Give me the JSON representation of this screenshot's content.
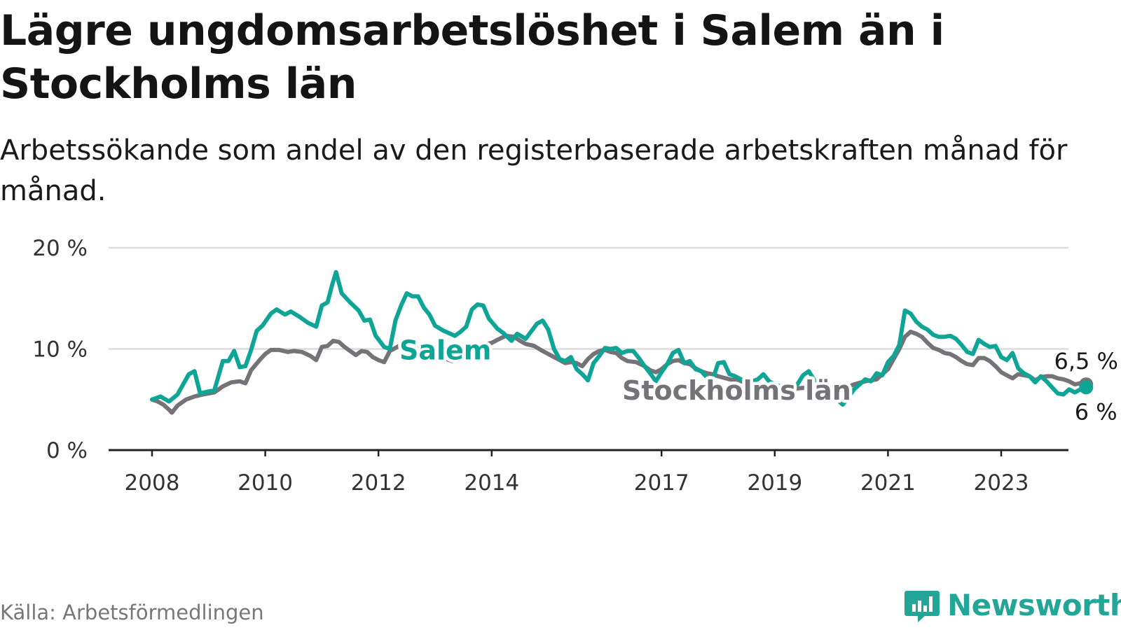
{
  "title": "Lägre ungdomsarbetslöshet i Salem än i Stockholms län",
  "subtitle": "Arbetssökande som andel av den registerbaserade arbetskraften månad för månad.",
  "source": "Källa: Arbetsförmedlingen",
  "brand": {
    "name": "Newsworthy",
    "icon": "bar-chart-icon",
    "color": "#23a598"
  },
  "colors": {
    "salem": "#0ea596",
    "stockholm": "#767378",
    "grid": "#dcdcdc",
    "axis": "#222222"
  },
  "chart_data": {
    "type": "line",
    "ylim": [
      0,
      20
    ],
    "yticks": [
      0,
      10,
      20
    ],
    "ytick_labels": [
      "0 %",
      "10 %",
      "20 %"
    ],
    "xlim": [
      2008,
      2024.2
    ],
    "xticks": [
      2008,
      2010,
      2012,
      2014,
      2017,
      2019,
      2021,
      2023
    ],
    "xtick_labels": [
      "2008",
      "2010",
      "2012",
      "2014",
      "2017",
      "2019",
      "2021",
      "2023"
    ],
    "series": [
      {
        "name": "Salem",
        "label": "Salem",
        "end_label": "6 %",
        "color": "#0ea596",
        "points": [
          [
            2008.0,
            5.0
          ],
          [
            2008.15,
            5.3
          ],
          [
            2008.3,
            4.8
          ],
          [
            2008.45,
            5.5
          ],
          [
            2008.55,
            6.5
          ],
          [
            2008.65,
            7.5
          ],
          [
            2008.75,
            7.8
          ],
          [
            2008.85,
            5.6
          ],
          [
            2009.0,
            5.8
          ],
          [
            2009.1,
            5.9
          ],
          [
            2009.25,
            8.8
          ],
          [
            2009.35,
            8.8
          ],
          [
            2009.45,
            9.8
          ],
          [
            2009.55,
            8.2
          ],
          [
            2009.65,
            8.3
          ],
          [
            2009.75,
            9.9
          ],
          [
            2009.85,
            11.8
          ],
          [
            2009.95,
            12.3
          ],
          [
            2010.1,
            13.5
          ],
          [
            2010.2,
            13.9
          ],
          [
            2010.35,
            13.4
          ],
          [
            2010.45,
            13.7
          ],
          [
            2010.6,
            13.2
          ],
          [
            2010.75,
            12.6
          ],
          [
            2010.9,
            12.2
          ],
          [
            2011.0,
            14.3
          ],
          [
            2011.1,
            14.6
          ],
          [
            2011.18,
            16.3
          ],
          [
            2011.25,
            17.6
          ],
          [
            2011.35,
            15.5
          ],
          [
            2011.5,
            14.6
          ],
          [
            2011.65,
            13.8
          ],
          [
            2011.75,
            12.8
          ],
          [
            2011.85,
            12.9
          ],
          [
            2011.95,
            11.3
          ],
          [
            2012.1,
            10.2
          ],
          [
            2012.2,
            10.0
          ],
          [
            2012.3,
            12.8
          ],
          [
            2012.4,
            14.3
          ],
          [
            2012.5,
            15.5
          ],
          [
            2012.6,
            15.2
          ],
          [
            2012.7,
            15.2
          ],
          [
            2012.8,
            14.1
          ],
          [
            2012.9,
            13.4
          ],
          [
            2013.0,
            12.3
          ],
          [
            2013.15,
            11.8
          ],
          [
            2013.35,
            11.3
          ],
          [
            2013.45,
            11.7
          ],
          [
            2013.55,
            12.2
          ],
          [
            2013.65,
            13.9
          ],
          [
            2013.75,
            14.4
          ],
          [
            2013.85,
            14.3
          ],
          [
            2013.95,
            13.0
          ],
          [
            2014.1,
            12.0
          ],
          [
            2014.2,
            11.6
          ],
          [
            2014.35,
            10.8
          ],
          [
            2014.45,
            11.5
          ],
          [
            2014.6,
            11.0
          ],
          [
            2014.8,
            12.5
          ],
          [
            2014.9,
            12.8
          ],
          [
            2015.0,
            11.9
          ],
          [
            2015.1,
            10.0
          ],
          [
            2015.2,
            9.0
          ],
          [
            2015.3,
            8.8
          ],
          [
            2015.4,
            9.2
          ],
          [
            2015.5,
            8.0
          ],
          [
            2015.6,
            7.5
          ],
          [
            2015.7,
            6.9
          ],
          [
            2015.8,
            8.6
          ],
          [
            2015.9,
            9.3
          ],
          [
            2016.0,
            10.1
          ],
          [
            2016.1,
            10.0
          ],
          [
            2016.2,
            10.1
          ],
          [
            2016.3,
            9.6
          ],
          [
            2016.4,
            9.8
          ],
          [
            2016.5,
            9.8
          ],
          [
            2016.6,
            9.1
          ],
          [
            2016.7,
            8.3
          ],
          [
            2016.8,
            7.6
          ],
          [
            2016.9,
            6.8
          ],
          [
            2017.0,
            7.7
          ],
          [
            2017.1,
            8.5
          ],
          [
            2017.2,
            9.6
          ],
          [
            2017.3,
            9.9
          ],
          [
            2017.4,
            8.6
          ],
          [
            2017.5,
            8.8
          ],
          [
            2017.6,
            8.0
          ],
          [
            2017.7,
            7.8
          ],
          [
            2017.8,
            7.2
          ],
          [
            2017.9,
            6.9
          ],
          [
            2018.0,
            8.6
          ],
          [
            2018.1,
            8.7
          ],
          [
            2018.2,
            7.5
          ],
          [
            2018.3,
            7.3
          ],
          [
            2018.4,
            7.0
          ],
          [
            2018.5,
            6.9
          ],
          [
            2018.6,
            6.8
          ],
          [
            2018.7,
            7.0
          ],
          [
            2018.8,
            7.5
          ],
          [
            2018.9,
            6.8
          ],
          [
            2019.0,
            6.5
          ],
          [
            2019.1,
            6.3
          ],
          [
            2019.2,
            6.0
          ],
          [
            2019.3,
            6.2
          ],
          [
            2019.4,
            6.5
          ],
          [
            2019.5,
            7.4
          ],
          [
            2019.6,
            7.8
          ],
          [
            2019.7,
            6.9
          ],
          [
            2019.8,
            6.0
          ],
          [
            2019.9,
            5.5
          ],
          [
            2020.0,
            5.4
          ],
          [
            2020.1,
            5.0
          ],
          [
            2020.2,
            4.5
          ],
          [
            2020.3,
            5.2
          ],
          [
            2020.4,
            6.0
          ],
          [
            2020.5,
            6.5
          ],
          [
            2020.6,
            7.0
          ],
          [
            2020.7,
            6.8
          ],
          [
            2020.8,
            7.6
          ],
          [
            2020.9,
            7.4
          ],
          [
            2021.0,
            8.7
          ],
          [
            2021.1,
            9.3
          ],
          [
            2021.2,
            10.4
          ],
          [
            2021.3,
            13.8
          ],
          [
            2021.4,
            13.5
          ],
          [
            2021.5,
            12.7
          ],
          [
            2021.6,
            12.2
          ],
          [
            2021.7,
            11.9
          ],
          [
            2021.8,
            11.4
          ],
          [
            2021.9,
            11.2
          ],
          [
            2022.0,
            11.2
          ],
          [
            2022.1,
            11.3
          ],
          [
            2022.2,
            11.0
          ],
          [
            2022.3,
            10.4
          ],
          [
            2022.4,
            9.7
          ],
          [
            2022.5,
            9.5
          ],
          [
            2022.6,
            10.9
          ],
          [
            2022.7,
            10.5
          ],
          [
            2022.8,
            10.2
          ],
          [
            2022.9,
            10.3
          ],
          [
            2023.0,
            9.2
          ],
          [
            2023.1,
            8.9
          ],
          [
            2023.2,
            9.6
          ],
          [
            2023.3,
            8.1
          ],
          [
            2023.4,
            7.6
          ],
          [
            2023.5,
            7.3
          ],
          [
            2023.6,
            6.7
          ],
          [
            2023.7,
            7.3
          ],
          [
            2023.8,
            6.8
          ],
          [
            2023.9,
            6.2
          ],
          [
            2024.0,
            5.6
          ],
          [
            2024.1,
            5.5
          ],
          [
            2024.2,
            6.0
          ],
          [
            2024.3,
            5.7
          ],
          [
            2024.4,
            6.0
          ],
          [
            2024.5,
            6.2
          ]
        ]
      },
      {
        "name": "Stockholms län",
        "label": "Stockholms län",
        "end_label": "6,5 %",
        "color": "#767378",
        "points": [
          [
            2008.0,
            5.0
          ],
          [
            2008.1,
            4.8
          ],
          [
            2008.2,
            4.5
          ],
          [
            2008.3,
            4.0
          ],
          [
            2008.35,
            3.7
          ],
          [
            2008.45,
            4.4
          ],
          [
            2008.6,
            5.0
          ],
          [
            2008.75,
            5.3
          ],
          [
            2008.9,
            5.5
          ],
          [
            2009.0,
            5.6
          ],
          [
            2009.1,
            5.7
          ],
          [
            2009.25,
            6.3
          ],
          [
            2009.4,
            6.7
          ],
          [
            2009.55,
            6.8
          ],
          [
            2009.65,
            6.6
          ],
          [
            2009.75,
            7.9
          ],
          [
            2009.9,
            8.9
          ],
          [
            2010.0,
            9.5
          ],
          [
            2010.1,
            9.9
          ],
          [
            2010.25,
            9.9
          ],
          [
            2010.4,
            9.7
          ],
          [
            2010.5,
            9.8
          ],
          [
            2010.65,
            9.7
          ],
          [
            2010.8,
            9.3
          ],
          [
            2010.9,
            8.9
          ],
          [
            2011.0,
            10.2
          ],
          [
            2011.1,
            10.3
          ],
          [
            2011.2,
            10.8
          ],
          [
            2011.3,
            10.7
          ],
          [
            2011.4,
            10.2
          ],
          [
            2011.5,
            9.8
          ],
          [
            2011.6,
            9.4
          ],
          [
            2011.7,
            9.8
          ],
          [
            2011.8,
            9.7
          ],
          [
            2011.9,
            9.2
          ],
          [
            2012.0,
            8.9
          ],
          [
            2012.1,
            8.7
          ],
          [
            2012.2,
            9.8
          ],
          [
            2012.3,
            10.1
          ],
          [
            2012.45,
            10.6
          ],
          [
            2012.6,
            10.4
          ],
          [
            2012.75,
            10.2
          ],
          [
            2012.85,
            9.8
          ],
          [
            2012.95,
            9.3
          ],
          [
            2013.05,
            9.3
          ],
          [
            2013.15,
            9.1
          ],
          [
            2013.3,
            8.8
          ],
          [
            2013.5,
            9.5
          ],
          [
            2013.65,
            10.1
          ],
          [
            2013.85,
            10.4
          ],
          [
            2014.0,
            10.6
          ],
          [
            2014.1,
            10.9
          ],
          [
            2014.25,
            11.3
          ],
          [
            2014.4,
            11.2
          ],
          [
            2014.5,
            10.8
          ],
          [
            2014.6,
            10.5
          ],
          [
            2014.75,
            10.3
          ],
          [
            2014.9,
            9.8
          ],
          [
            2015.0,
            9.5
          ],
          [
            2015.1,
            9.2
          ],
          [
            2015.2,
            8.9
          ],
          [
            2015.3,
            8.6
          ],
          [
            2015.4,
            8.7
          ],
          [
            2015.5,
            8.6
          ],
          [
            2015.6,
            8.3
          ],
          [
            2015.7,
            9.0
          ],
          [
            2015.8,
            9.5
          ],
          [
            2015.9,
            9.8
          ],
          [
            2016.0,
            9.9
          ],
          [
            2016.1,
            9.7
          ],
          [
            2016.2,
            9.6
          ],
          [
            2016.3,
            9.1
          ],
          [
            2016.4,
            8.8
          ],
          [
            2016.55,
            8.7
          ],
          [
            2016.7,
            8.3
          ],
          [
            2016.8,
            7.9
          ],
          [
            2016.9,
            7.7
          ],
          [
            2017.0,
            8.0
          ],
          [
            2017.1,
            8.5
          ],
          [
            2017.2,
            8.8
          ],
          [
            2017.3,
            8.9
          ],
          [
            2017.4,
            8.6
          ],
          [
            2017.5,
            8.5
          ],
          [
            2017.6,
            8.1
          ],
          [
            2017.7,
            7.8
          ],
          [
            2017.8,
            7.6
          ],
          [
            2017.9,
            7.5
          ],
          [
            2018.0,
            7.3
          ],
          [
            2018.2,
            7.0
          ],
          [
            2018.4,
            6.8
          ],
          [
            2018.6,
            6.6
          ],
          [
            2018.8,
            6.4
          ],
          [
            2019.0,
            6.2
          ],
          [
            2019.2,
            6.0
          ],
          [
            2019.4,
            6.1
          ],
          [
            2019.6,
            6.2
          ],
          [
            2019.8,
            6.0
          ],
          [
            2020.0,
            5.8
          ],
          [
            2020.2,
            6.0
          ],
          [
            2020.4,
            6.5
          ],
          [
            2020.6,
            6.8
          ],
          [
            2020.8,
            7.0
          ],
          [
            2021.0,
            8.0
          ],
          [
            2021.1,
            9.0
          ],
          [
            2021.2,
            10.0
          ],
          [
            2021.3,
            11.2
          ],
          [
            2021.4,
            11.7
          ],
          [
            2021.5,
            11.5
          ],
          [
            2021.6,
            11.2
          ],
          [
            2021.7,
            10.6
          ],
          [
            2021.8,
            10.1
          ],
          [
            2021.9,
            9.9
          ],
          [
            2022.0,
            9.6
          ],
          [
            2022.1,
            9.5
          ],
          [
            2022.2,
            9.2
          ],
          [
            2022.3,
            8.8
          ],
          [
            2022.4,
            8.5
          ],
          [
            2022.5,
            8.4
          ],
          [
            2022.6,
            9.1
          ],
          [
            2022.7,
            9.1
          ],
          [
            2022.8,
            8.8
          ],
          [
            2022.9,
            8.3
          ],
          [
            2023.0,
            7.7
          ],
          [
            2023.1,
            7.4
          ],
          [
            2023.2,
            7.1
          ],
          [
            2023.3,
            7.5
          ],
          [
            2023.4,
            7.4
          ],
          [
            2023.5,
            7.3
          ],
          [
            2023.6,
            6.9
          ],
          [
            2023.7,
            7.2
          ],
          [
            2023.8,
            7.3
          ],
          [
            2023.9,
            7.3
          ],
          [
            2024.0,
            7.1
          ],
          [
            2024.1,
            7.0
          ],
          [
            2024.2,
            6.8
          ],
          [
            2024.3,
            6.5
          ],
          [
            2024.4,
            6.6
          ],
          [
            2024.5,
            6.5
          ]
        ]
      }
    ]
  }
}
